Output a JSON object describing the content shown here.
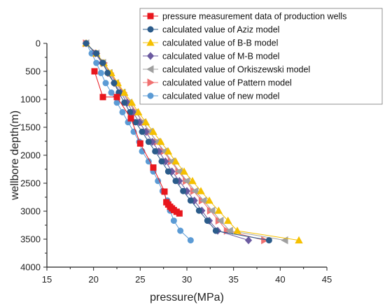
{
  "chart_data": {
    "type": "scatter",
    "xlabel": "pressure(MPa)",
    "ylabel": "wellbore depth(m)",
    "xlim": [
      15,
      45
    ],
    "ylim": [
      0,
      4000
    ],
    "y_inverted": true,
    "x_ticks": [
      "15",
      "20",
      "25",
      "30",
      "35",
      "40",
      "45"
    ],
    "y_ticks": [
      "0",
      "500",
      "1000",
      "1500",
      "2000",
      "2500",
      "3000",
      "3500",
      "4000"
    ],
    "legend_position": "top-right",
    "series": [
      {
        "name": "pressure measurement data of production wells",
        "color": "#e8161d",
        "marker": "square",
        "points": [
          [
            20.1,
            500
          ],
          [
            21.0,
            960
          ],
          [
            22.5,
            960
          ],
          [
            24.0,
            1340
          ],
          [
            25.0,
            1790
          ],
          [
            26.4,
            2220
          ],
          [
            27.6,
            2650
          ],
          [
            27.8,
            2840
          ],
          [
            28.0,
            2880
          ],
          [
            28.2,
            2920
          ],
          [
            28.4,
            2950
          ],
          [
            28.6,
            2980
          ],
          [
            28.9,
            3010
          ],
          [
            29.2,
            3040
          ]
        ]
      },
      {
        "name": "calculated value of Aziz model",
        "color": "#2b5b8a",
        "marker": "circle",
        "points": [
          [
            19.2,
            0
          ],
          [
            20.3,
            180
          ],
          [
            21.0,
            350
          ],
          [
            21.5,
            530
          ],
          [
            22.2,
            710
          ],
          [
            22.7,
            880
          ],
          [
            23.3,
            1060
          ],
          [
            23.9,
            1230
          ],
          [
            24.5,
            1410
          ],
          [
            25.2,
            1580
          ],
          [
            25.9,
            1760
          ],
          [
            26.6,
            1930
          ],
          [
            27.3,
            2110
          ],
          [
            28.0,
            2290
          ],
          [
            28.8,
            2460
          ],
          [
            29.6,
            2640
          ],
          [
            30.4,
            2810
          ],
          [
            31.3,
            2990
          ],
          [
            32.2,
            3170
          ],
          [
            33.1,
            3350
          ],
          [
            38.8,
            3520
          ]
        ]
      },
      {
        "name": "calculated value of B-B model",
        "color": "#f5c000",
        "marker": "triangle-up",
        "points": [
          [
            19.2,
            0
          ],
          [
            20.3,
            180
          ],
          [
            21.1,
            350
          ],
          [
            21.9,
            530
          ],
          [
            22.6,
            710
          ],
          [
            23.3,
            880
          ],
          [
            24.1,
            1060
          ],
          [
            24.8,
            1230
          ],
          [
            25.6,
            1410
          ],
          [
            26.4,
            1580
          ],
          [
            27.2,
            1760
          ],
          [
            28.0,
            1930
          ],
          [
            28.8,
            2110
          ],
          [
            29.7,
            2290
          ],
          [
            30.6,
            2460
          ],
          [
            31.5,
            2640
          ],
          [
            32.4,
            2810
          ],
          [
            33.4,
            2990
          ],
          [
            34.4,
            3170
          ],
          [
            35.4,
            3350
          ],
          [
            42.0,
            3520
          ]
        ]
      },
      {
        "name": "calculated value of M-B model",
        "color": "#6b5aa0",
        "marker": "diamond",
        "points": [
          [
            19.2,
            0
          ],
          [
            20.2,
            180
          ],
          [
            20.9,
            350
          ],
          [
            21.6,
            530
          ],
          [
            22.2,
            710
          ],
          [
            22.9,
            880
          ],
          [
            23.6,
            1060
          ],
          [
            24.2,
            1230
          ],
          [
            24.9,
            1410
          ],
          [
            25.6,
            1580
          ],
          [
            26.3,
            1760
          ],
          [
            27.0,
            1930
          ],
          [
            27.7,
            2110
          ],
          [
            28.4,
            2290
          ],
          [
            29.2,
            2460
          ],
          [
            30.0,
            2640
          ],
          [
            30.8,
            2810
          ],
          [
            31.6,
            2990
          ],
          [
            32.4,
            3170
          ],
          [
            33.3,
            3350
          ],
          [
            36.6,
            3520
          ]
        ]
      },
      {
        "name": "calculated value of Orkiszewski model",
        "color": "#a0a0a0",
        "marker": "triangle-left",
        "points": [
          [
            19.2,
            0
          ],
          [
            20.3,
            180
          ],
          [
            21.0,
            350
          ],
          [
            21.7,
            530
          ],
          [
            22.4,
            710
          ],
          [
            23.1,
            880
          ],
          [
            23.8,
            1060
          ],
          [
            24.5,
            1230
          ],
          [
            25.3,
            1410
          ],
          [
            26.0,
            1580
          ],
          [
            26.8,
            1760
          ],
          [
            27.6,
            1930
          ],
          [
            28.4,
            2110
          ],
          [
            29.2,
            2290
          ],
          [
            30.0,
            2460
          ],
          [
            30.9,
            2640
          ],
          [
            31.8,
            2810
          ],
          [
            32.7,
            2990
          ],
          [
            33.6,
            3170
          ],
          [
            34.6,
            3350
          ],
          [
            40.5,
            3520
          ]
        ]
      },
      {
        "name": "calculated value of Pattern model",
        "color": "#f07070",
        "marker": "triangle-right",
        "points": [
          [
            19.2,
            0
          ],
          [
            20.3,
            180
          ],
          [
            21.1,
            350
          ],
          [
            21.8,
            530
          ],
          [
            22.5,
            710
          ],
          [
            23.2,
            880
          ],
          [
            23.9,
            1060
          ],
          [
            24.6,
            1230
          ],
          [
            25.3,
            1410
          ],
          [
            26.0,
            1580
          ],
          [
            26.8,
            1760
          ],
          [
            27.5,
            1930
          ],
          [
            28.3,
            2110
          ],
          [
            29.1,
            2290
          ],
          [
            29.9,
            2460
          ],
          [
            30.7,
            2640
          ],
          [
            31.6,
            2810
          ],
          [
            32.5,
            2990
          ],
          [
            33.4,
            3170
          ],
          [
            34.3,
            3350
          ],
          [
            38.3,
            3520
          ]
        ]
      },
      {
        "name": "calculated value of new model",
        "color": "#5b9bd5",
        "marker": "circle",
        "points": [
          [
            19.2,
            0
          ],
          [
            19.8,
            180
          ],
          [
            20.3,
            350
          ],
          [
            20.8,
            530
          ],
          [
            21.3,
            710
          ],
          [
            21.9,
            880
          ],
          [
            22.5,
            1060
          ],
          [
            23.1,
            1230
          ],
          [
            23.7,
            1410
          ],
          [
            24.3,
            1580
          ],
          [
            24.9,
            1760
          ],
          [
            25.2,
            1930
          ],
          [
            25.9,
            2110
          ],
          [
            26.4,
            2290
          ],
          [
            26.9,
            2460
          ],
          [
            27.4,
            2640
          ],
          [
            27.9,
            2810
          ],
          [
            28.2,
            2990
          ],
          [
            28.6,
            3170
          ],
          [
            29.3,
            3350
          ],
          [
            30.4,
            3520
          ]
        ]
      }
    ]
  }
}
